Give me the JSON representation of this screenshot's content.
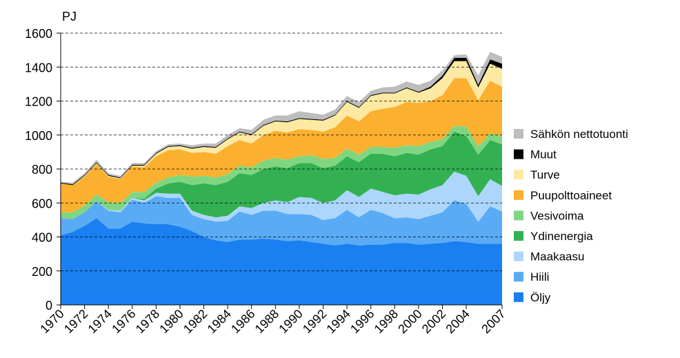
{
  "chart_data": {
    "type": "stacked-area",
    "y_label": "PJ",
    "x": [
      1970,
      1971,
      1972,
      1973,
      1974,
      1975,
      1976,
      1977,
      1978,
      1979,
      1980,
      1981,
      1982,
      1983,
      1984,
      1985,
      1986,
      1987,
      1988,
      1989,
      1990,
      1991,
      1992,
      1993,
      1994,
      1995,
      1996,
      1997,
      1998,
      1999,
      2000,
      2001,
      2002,
      2003,
      2004,
      2005,
      2006,
      2007
    ],
    "xlim": [
      1970,
      2007
    ],
    "xticks": [
      1970,
      1972,
      1974,
      1976,
      1978,
      1980,
      1982,
      1984,
      1986,
      1988,
      1990,
      1992,
      1994,
      1996,
      1998,
      2000,
      2002,
      2004,
      2007
    ],
    "ylim": [
      0,
      1600
    ],
    "yticks": [
      0,
      200,
      400,
      600,
      800,
      1000,
      1200,
      1400,
      1600
    ],
    "grid": true,
    "legend": "right",
    "series": [
      {
        "name": "Öljy",
        "color": "#1a7ff0",
        "values": [
          410,
          430,
          465,
          510,
          450,
          450,
          490,
          480,
          475,
          475,
          460,
          435,
          400,
          380,
          370,
          385,
          385,
          390,
          385,
          375,
          380,
          370,
          360,
          350,
          360,
          350,
          355,
          355,
          365,
          365,
          355,
          360,
          365,
          375,
          370,
          360,
          360,
          360
        ]
      },
      {
        "name": "Hiili",
        "color": "#59abf5",
        "values": [
          100,
          75,
          80,
          100,
          105,
          95,
          130,
          120,
          165,
          155,
          170,
          95,
          105,
          110,
          125,
          165,
          145,
          165,
          170,
          160,
          155,
          160,
          140,
          160,
          200,
          165,
          205,
          185,
          145,
          150,
          150,
          165,
          180,
          240,
          225,
          130,
          220,
          190
        ]
      },
      {
        "name": "Maakaasu",
        "color": "#acd6fb",
        "values": [
          0,
          0,
          0,
          0,
          5,
          10,
          10,
          15,
          20,
          25,
          25,
          25,
          25,
          25,
          30,
          30,
          40,
          45,
          60,
          70,
          100,
          100,
          100,
          105,
          115,
          120,
          125,
          125,
          135,
          140,
          145,
          155,
          160,
          170,
          165,
          150,
          160,
          150
        ]
      },
      {
        "name": "Ydinenergia",
        "color": "#33b152",
        "values": [
          0,
          0,
          0,
          0,
          0,
          0,
          0,
          10,
          25,
          60,
          70,
          150,
          185,
          190,
          200,
          195,
          195,
          200,
          200,
          200,
          200,
          205,
          205,
          205,
          200,
          205,
          205,
          225,
          230,
          240,
          235,
          235,
          230,
          235,
          235,
          245,
          230,
          245
        ]
      },
      {
        "name": "Vesivoima",
        "color": "#80d680",
        "values": [
          35,
          40,
          40,
          40,
          45,
          45,
          35,
          40,
          35,
          35,
          40,
          50,
          45,
          45,
          45,
          45,
          45,
          50,
          50,
          50,
          40,
          45,
          55,
          45,
          45,
          45,
          40,
          40,
          50,
          45,
          50,
          45,
          40,
          35,
          55,
          50,
          40,
          50
        ]
      },
      {
        "name": "Puupolttoaineet",
        "color": "#fbb030",
        "values": [
          170,
          160,
          170,
          180,
          150,
          140,
          150,
          145,
          155,
          160,
          150,
          140,
          140,
          140,
          165,
          150,
          140,
          150,
          160,
          160,
          160,
          150,
          160,
          180,
          195,
          195,
          210,
          225,
          240,
          255,
          255,
          240,
          260,
          280,
          285,
          270,
          310,
          290
        ]
      },
      {
        "name": "Turve",
        "color": "#fde9a2",
        "values": [
          0,
          0,
          5,
          5,
          5,
          5,
          5,
          10,
          15,
          20,
          20,
          25,
          30,
          35,
          40,
          45,
          50,
          55,
          55,
          60,
          60,
          60,
          65,
          70,
          80,
          80,
          90,
          90,
          80,
          80,
          60,
          75,
          100,
          100,
          100,
          75,
          100,
          105
        ]
      },
      {
        "name": "Muut",
        "color": "#000000",
        "values": [
          5,
          5,
          5,
          5,
          5,
          5,
          5,
          5,
          5,
          5,
          5,
          5,
          5,
          5,
          5,
          5,
          5,
          5,
          5,
          5,
          5,
          5,
          5,
          5,
          5,
          5,
          5,
          5,
          5,
          5,
          5,
          10,
          15,
          20,
          20,
          15,
          25,
          30
        ]
      },
      {
        "name": "Sähkön nettotuonti",
        "color": "#bdbdbd",
        "values": [
          5,
          10,
          10,
          15,
          10,
          10,
          10,
          10,
          10,
          10,
          10,
          15,
          15,
          20,
          20,
          20,
          25,
          30,
          30,
          35,
          40,
          35,
          30,
          30,
          30,
          30,
          25,
          30,
          35,
          35,
          40,
          35,
          30,
          15,
          20,
          55,
          45,
          40
        ]
      }
    ]
  }
}
